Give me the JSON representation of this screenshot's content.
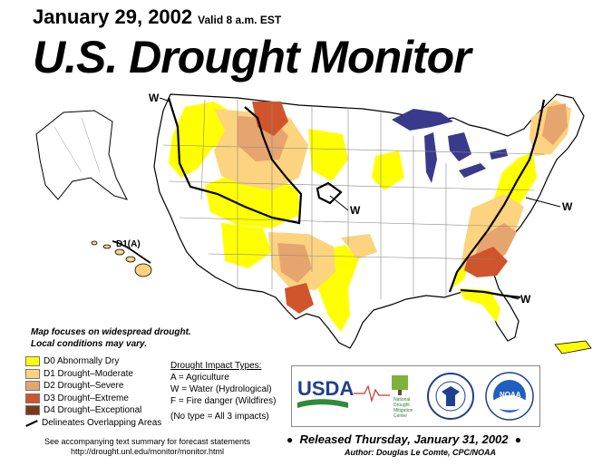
{
  "header": {
    "date": "January 29, 2002",
    "valid": "Valid 8 a.m. EST",
    "title": "U.S. Drought Monitor"
  },
  "map_labels": {
    "w_northwest": "W",
    "w_kansas": "W",
    "w_midatlantic": "W",
    "w_southeast": "W",
    "d1a_hawaii": "D1(A)"
  },
  "focus_note": {
    "line1": "Map focuses on widespread drought.",
    "line2": "Local conditions may vary."
  },
  "legend": {
    "items": [
      {
        "label": "D0 Abnormally Dry",
        "color": "#ffff00"
      },
      {
        "label": "D1 Drought–Moderate",
        "color": "#fcd37f"
      },
      {
        "label": "D2 Drought–Severe",
        "color": "#e6a56e"
      },
      {
        "label": "D3 Drought–Extreme",
        "color": "#d0552c"
      },
      {
        "label": "D4 Drought–Exceptional",
        "color": "#7a3a1a"
      }
    ],
    "line_label": "Delineates Overlapping Areas"
  },
  "impacts": {
    "heading": "Drought Impact Types:",
    "a": "A = Agriculture",
    "w": "W = Water (Hydrological)",
    "f": "F = Fire danger (Wildfires)",
    "none": "(No type = All 3 impacts)"
  },
  "logos": {
    "usda": "USDA",
    "ndmc_line1": "National",
    "ndmc_line2": "Drought",
    "ndmc_line3": "Mitigation",
    "ndmc_line4": "Center",
    "noaa": "NOAA"
  },
  "footer": {
    "summary_line1": "See accompanying text summary for forecast statements",
    "summary_line2": "http://drought.unl.edu/monitor/monitor.html",
    "released": "Released Thursday, January 31, 2002",
    "author": "Author:  Douglas Le Comte, CPC/NOAA"
  },
  "colors": {
    "d0": "#ffff00",
    "d1": "#fcd37f",
    "d2": "#e6a56e",
    "d3": "#d0552c",
    "d4": "#7a3a1a",
    "lakes": "#3a3a8c"
  }
}
